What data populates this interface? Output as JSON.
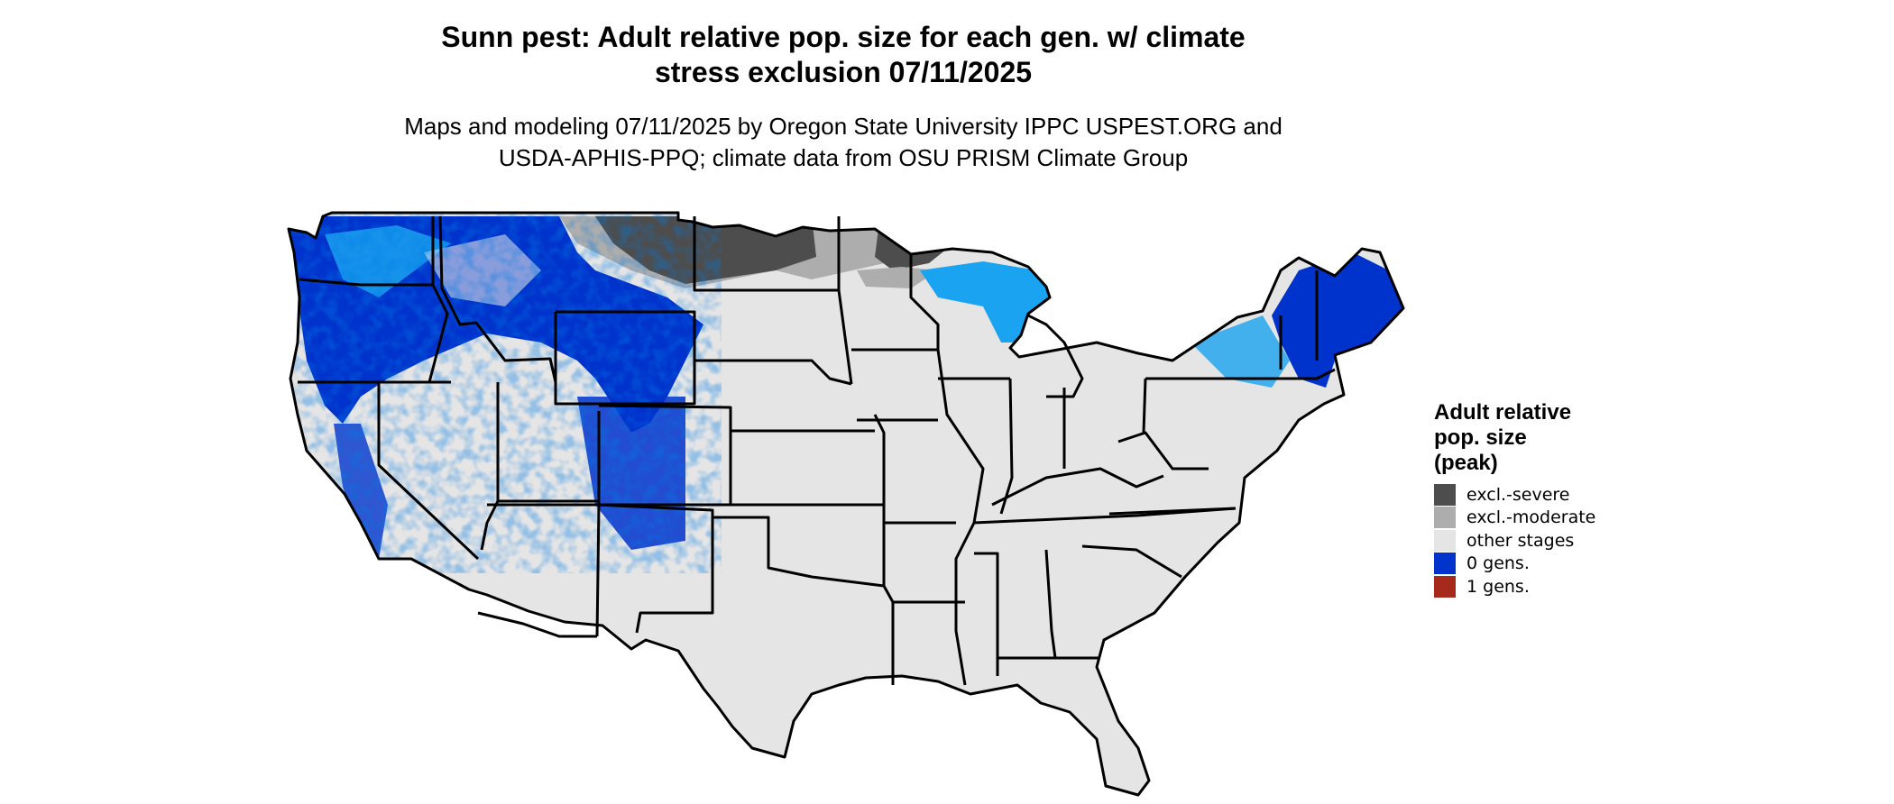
{
  "header": {
    "title_line1": "Sunn pest: Adult relative pop. size for each gen. w/ climate",
    "title_line2": "stress exclusion 07/11/2025",
    "subtitle_line1": "Maps and modeling 07/11/2025 by Oregon State University IPPC USPEST.ORG and",
    "subtitle_line2": "USDA-APHIS-PPQ; climate data from OSU PRISM Climate Group"
  },
  "legend": {
    "title_line1": "Adult relative",
    "title_line2": "pop. size",
    "title_line3": "(peak)",
    "items": [
      {
        "label": "excl.-severe",
        "color": "#4d4d4d"
      },
      {
        "label": "excl.-moderate",
        "color": "#adadad"
      },
      {
        "label": "other stages",
        "color": "#e5e5e5"
      },
      {
        "label": "0 gens.",
        "color": "#0033cc"
      },
      {
        "label": "1 gens.",
        "color": "#a52a1c"
      }
    ]
  },
  "map": {
    "region": "contiguous United States",
    "base_color": "#e5e5e5",
    "state_border_color": "#000000",
    "blue_dark": "#0033cc",
    "blue_light": "#1aa3f0",
    "severe_color": "#4d4d4d",
    "moderate_color": "#adadad"
  }
}
